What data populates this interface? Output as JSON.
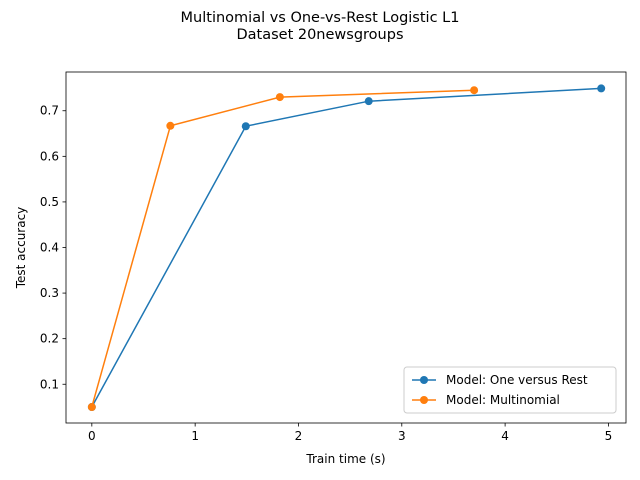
{
  "chart_data": {
    "type": "line",
    "title_lines": [
      "Multinomial vs One-vs-Rest Logistic L1",
      "Dataset 20newsgroups"
    ],
    "xlabel": "Train time (s)",
    "ylabel": "Test accuracy",
    "xlim": [
      -0.25,
      5.17
    ],
    "ylim": [
      0.015,
      0.785
    ],
    "xticks": [
      0,
      1,
      2,
      3,
      4,
      5
    ],
    "yticks": [
      0.1,
      0.2,
      0.3,
      0.4,
      0.5,
      0.6,
      0.7
    ],
    "grid": false,
    "legend_position": "lower-right",
    "series": [
      {
        "name": "Model: One versus Rest",
        "color": "#1f77b4",
        "x": [
          0.0,
          1.49,
          2.68,
          4.93
        ],
        "y": [
          0.05,
          0.666,
          0.721,
          0.749
        ]
      },
      {
        "name": "Model: Multinomial",
        "color": "#ff7f0e",
        "x": [
          0.0,
          0.76,
          1.82,
          3.7
        ],
        "y": [
          0.05,
          0.667,
          0.73,
          0.745
        ]
      }
    ]
  }
}
